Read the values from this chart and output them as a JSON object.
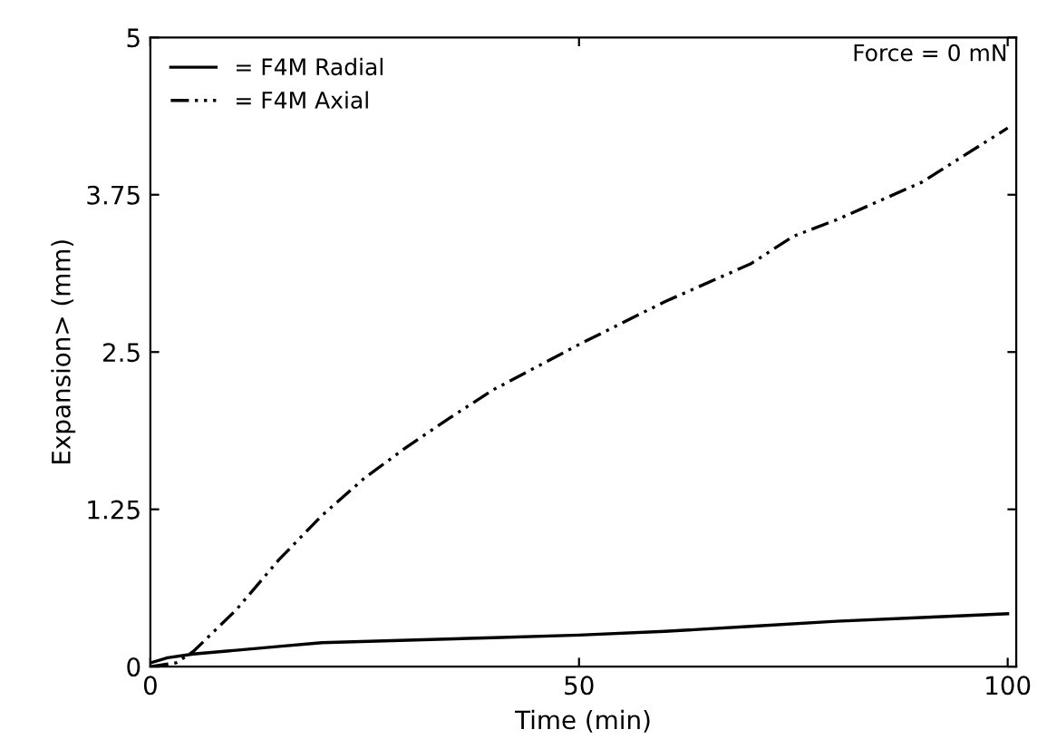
{
  "chart_data": {
    "type": "line",
    "xlabel": "Time (min)",
    "ylabel": "Expansion> (mm)",
    "xlim": [
      0,
      101
    ],
    "ylim": [
      0,
      5
    ],
    "xticks": [
      0,
      50,
      100
    ],
    "yticks": [
      0,
      1.25,
      2.5,
      3.75,
      5
    ],
    "grid": false,
    "legend": "top left",
    "marker": "none",
    "annotations": [
      "Force = 0 mN"
    ],
    "series": [
      {
        "name": "= F4M Radial",
        "color": "#000000",
        "line_style": "solid",
        "x": [
          0,
          2,
          5,
          10,
          15,
          20,
          30,
          40,
          50,
          60,
          70,
          80,
          90,
          100
        ],
        "values": [
          0.03,
          0.07,
          0.1,
          0.13,
          0.16,
          0.19,
          0.21,
          0.23,
          0.25,
          0.28,
          0.32,
          0.36,
          0.39,
          0.42
        ]
      },
      {
        "name": "= F4M Axial",
        "color": "#000000",
        "line_style": "dashdot",
        "x": [
          0,
          3,
          5,
          10,
          15,
          20,
          25,
          30,
          35,
          40,
          50,
          60,
          70,
          75,
          80,
          90,
          100
        ],
        "values": [
          0,
          0.03,
          0.12,
          0.45,
          0.85,
          1.2,
          1.5,
          1.75,
          1.98,
          2.2,
          2.56,
          2.9,
          3.2,
          3.42,
          3.55,
          3.85,
          4.28
        ]
      }
    ]
  }
}
